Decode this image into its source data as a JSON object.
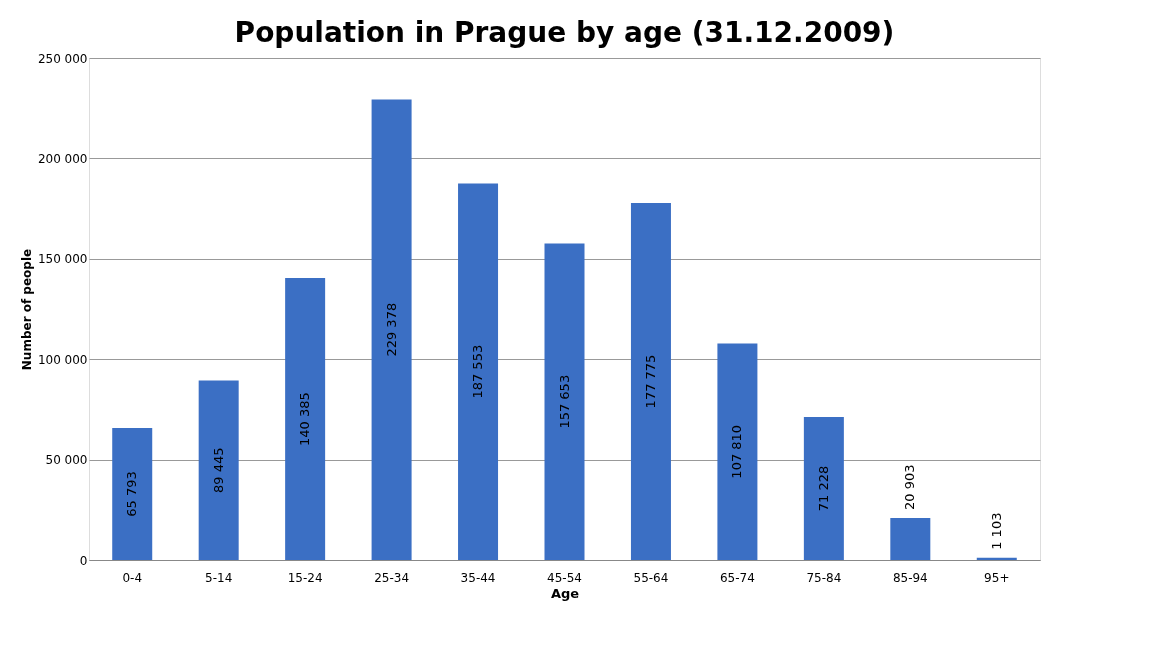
{
  "chart_data": {
    "type": "bar",
    "title": "Population in Prague by age (31.12.2009)",
    "xlabel": "Age",
    "ylabel": "Number of people",
    "categories": [
      "0-4",
      "5-14",
      "15-24",
      "25-34",
      "35-44",
      "45-54",
      "55-64",
      "65-74",
      "75-84",
      "85-94",
      "95+"
    ],
    "values": [
      65793,
      89445,
      140385,
      229378,
      187553,
      157653,
      177775,
      107810,
      71228,
      20903,
      1103
    ],
    "value_labels": [
      "65 793",
      "89 445",
      "140 385",
      "229 378",
      "187 553",
      "157 653",
      "177 775",
      "107 810",
      "71 228",
      "20 903",
      "1 103"
    ],
    "color": "#3b6fc4",
    "ylim": [
      0,
      250000
    ],
    "yticks": [
      0,
      {
        "value": 50000,
        "label": "50 000"
      },
      {
        "value": 100000,
        "label": "100 000"
      },
      {
        "value": 150000,
        "label": "150 000"
      },
      {
        "value": 200000,
        "label": "200 000"
      },
      {
        "value": 250000,
        "label": "250 000"
      }
    ],
    "grid": "y"
  }
}
